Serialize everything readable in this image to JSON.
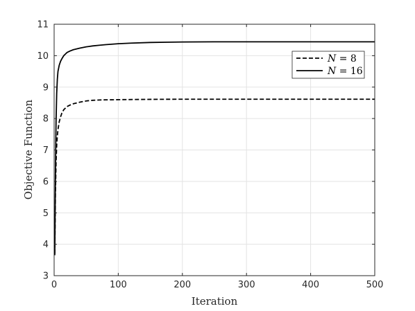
{
  "chart_data": {
    "type": "line",
    "xlabel": "Iteration",
    "ylabel": "Objective Function",
    "xlim": [
      0,
      500
    ],
    "ylim": [
      3,
      11
    ],
    "xticks": [
      0,
      100,
      200,
      300,
      400,
      500
    ],
    "yticks": [
      3,
      4,
      5,
      6,
      7,
      8,
      9,
      10,
      11
    ],
    "grid": true,
    "legend_position": "top-right",
    "series": [
      {
        "name": "N = 8",
        "legend_var": "N",
        "legend_rest": " = 8",
        "line_style": "dashed",
        "color": "#000000",
        "x": [
          1,
          2,
          3,
          4,
          5,
          6,
          8,
          10,
          12,
          15,
          20,
          25,
          30,
          40,
          50,
          60,
          70,
          80,
          100,
          120,
          150,
          200,
          250,
          300,
          400,
          500
        ],
        "y": [
          3.7,
          5.6,
          6.6,
          7.15,
          7.45,
          7.65,
          7.9,
          8.05,
          8.17,
          8.28,
          8.38,
          8.43,
          8.47,
          8.52,
          8.56,
          8.58,
          8.59,
          8.595,
          8.6,
          8.605,
          8.61,
          8.615,
          8.615,
          8.615,
          8.615,
          8.615
        ]
      },
      {
        "name": "N = 16",
        "legend_var": "N",
        "legend_rest": " = 16",
        "line_style": "solid",
        "color": "#000000",
        "x": [
          1,
          2,
          3,
          4,
          5,
          6,
          8,
          10,
          12,
          15,
          20,
          25,
          30,
          40,
          50,
          60,
          70,
          80,
          100,
          120,
          150,
          180,
          200,
          250,
          300,
          400,
          500
        ],
        "y": [
          3.65,
          6.2,
          7.9,
          8.8,
          9.25,
          9.5,
          9.7,
          9.82,
          9.9,
          10.0,
          10.1,
          10.15,
          10.19,
          10.24,
          10.28,
          10.31,
          10.33,
          10.35,
          10.38,
          10.4,
          10.42,
          10.43,
          10.435,
          10.44,
          10.44,
          10.44,
          10.44
        ]
      }
    ]
  }
}
